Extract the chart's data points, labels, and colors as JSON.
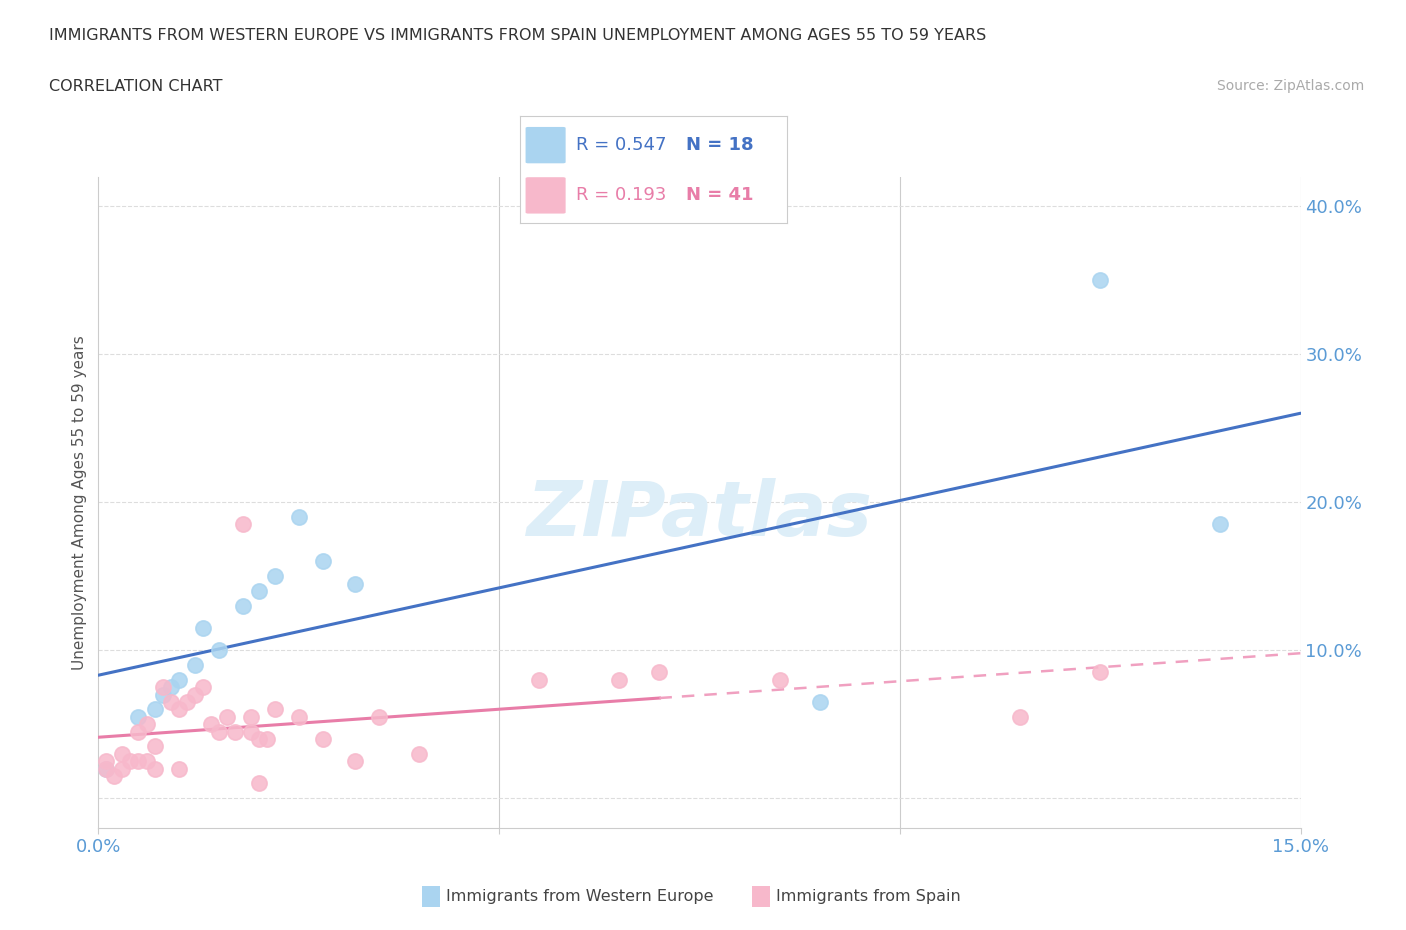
{
  "title_line1": "IMMIGRANTS FROM WESTERN EUROPE VS IMMIGRANTS FROM SPAIN UNEMPLOYMENT AMONG AGES 55 TO 59 YEARS",
  "title_line2": "CORRELATION CHART",
  "source_text": "Source: ZipAtlas.com",
  "ylabel": "Unemployment Among Ages 55 to 59 years",
  "xlim": [
    0.0,
    0.15
  ],
  "ylim": [
    -0.02,
    0.42
  ],
  "ytick_positions": [
    0.0,
    0.1,
    0.2,
    0.3,
    0.4
  ],
  "ytick_labels": [
    "",
    "10.0%",
    "20.0%",
    "30.0%",
    "40.0%"
  ],
  "blue_label": "Immigrants from Western Europe",
  "pink_label": "Immigrants from Spain",
  "blue_R": "0.547",
  "blue_N": "18",
  "pink_R": "0.193",
  "pink_N": "41",
  "blue_scatter_color": "#aad4f0",
  "pink_scatter_color": "#f7b8cb",
  "blue_line_color": "#4472c4",
  "pink_line_solid_color": "#e87da8",
  "pink_line_dash_color": "#f0a0c0",
  "watermark_color": "#ddeef8",
  "background_color": "#ffffff",
  "blue_x": [
    0.001,
    0.005,
    0.007,
    0.008,
    0.009,
    0.01,
    0.012,
    0.013,
    0.015,
    0.018,
    0.02,
    0.022,
    0.025,
    0.028,
    0.032,
    0.09,
    0.125,
    0.14
  ],
  "blue_y": [
    0.02,
    0.055,
    0.06,
    0.07,
    0.075,
    0.08,
    0.09,
    0.115,
    0.1,
    0.13,
    0.14,
    0.15,
    0.19,
    0.16,
    0.145,
    0.065,
    0.35,
    0.185
  ],
  "pink_x": [
    0.001,
    0.001,
    0.002,
    0.003,
    0.003,
    0.004,
    0.005,
    0.005,
    0.006,
    0.006,
    0.007,
    0.007,
    0.008,
    0.009,
    0.01,
    0.01,
    0.011,
    0.012,
    0.013,
    0.014,
    0.015,
    0.016,
    0.017,
    0.018,
    0.019,
    0.019,
    0.02,
    0.02,
    0.021,
    0.022,
    0.025,
    0.028,
    0.032,
    0.035,
    0.04,
    0.055,
    0.065,
    0.07,
    0.085,
    0.115,
    0.125
  ],
  "pink_y": [
    0.02,
    0.025,
    0.015,
    0.02,
    0.03,
    0.025,
    0.025,
    0.045,
    0.025,
    0.05,
    0.02,
    0.035,
    0.075,
    0.065,
    0.02,
    0.06,
    0.065,
    0.07,
    0.075,
    0.05,
    0.045,
    0.055,
    0.045,
    0.185,
    0.045,
    0.055,
    0.01,
    0.04,
    0.04,
    0.06,
    0.055,
    0.04,
    0.025,
    0.055,
    0.03,
    0.08,
    0.08,
    0.085,
    0.08,
    0.055,
    0.085
  ],
  "grid_color": "#dddddd",
  "tick_label_color": "#5b9bd5",
  "title_color": "#333333",
  "ylabel_color": "#555555"
}
